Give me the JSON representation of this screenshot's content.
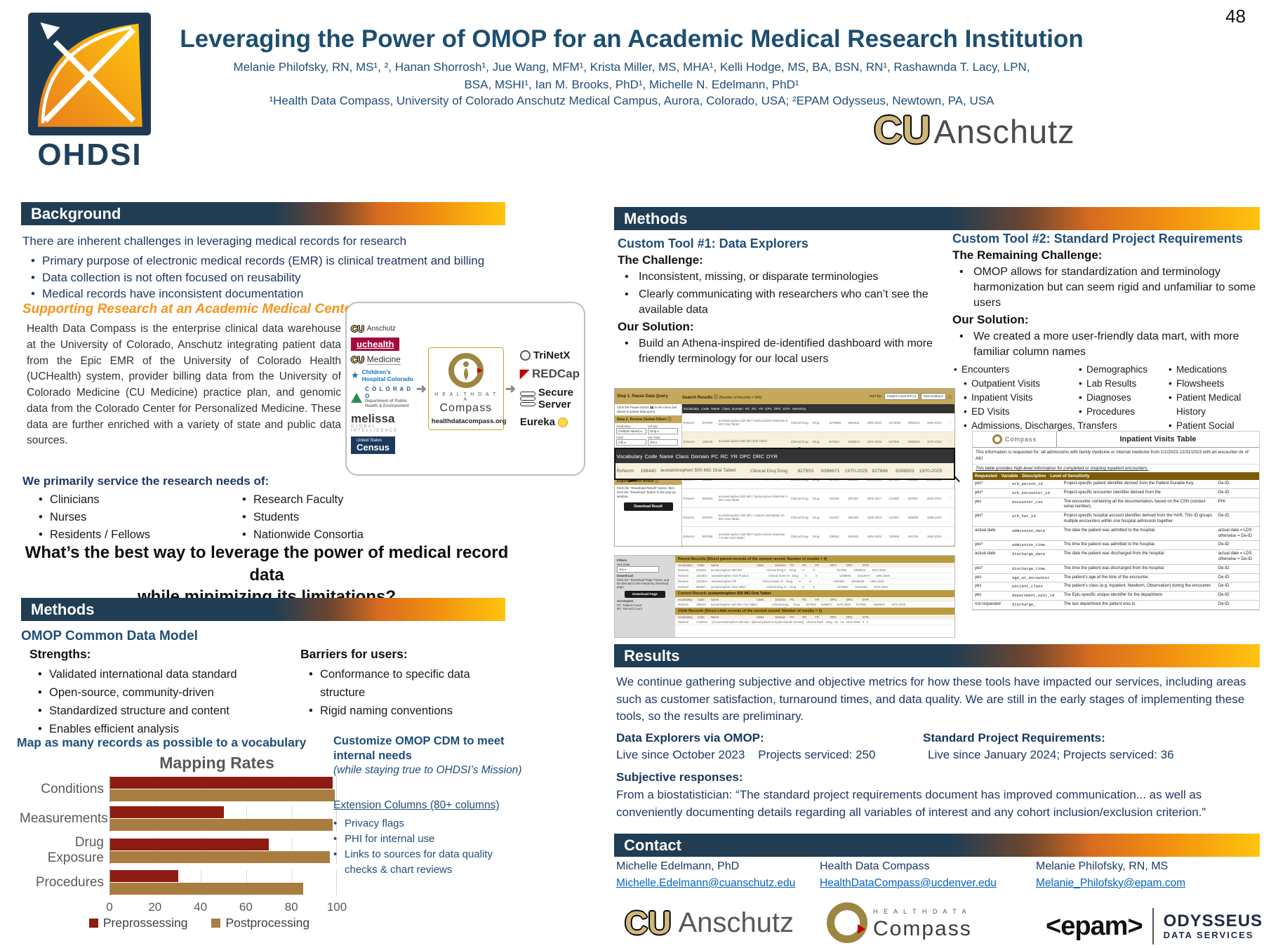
{
  "page": {
    "number": "48"
  },
  "header": {
    "title": "Leveraging the Power of OMOP for an Academic Medical Research Institution",
    "authors_line1": "Melanie Philofsky, RN, MS¹, ², Hanan Shorrosh¹, Jue Wang, MFM¹, Krista Miller, MS, MHA¹, Kelli Hodge, MS, BA, BSN, RN¹, Rashawnda T. Lacy, LPN,",
    "authors_line2": "BSA, MSHI¹, Ian M. Brooks, PhD¹, Michelle N. Edelmann, PhD¹",
    "affiliation": "¹Health Data Compass, University of Colorado Anschutz Medical Campus, Aurora, Colorado, USA; ²EPAM Odysseus, Newtown, PA, USA",
    "ohdsi_logo_text": "OHDSI",
    "cu_monogram": "CU",
    "anschutz_logo_text": "Anschutz"
  },
  "background": {
    "heading": "Background",
    "intro": "There are inherent challenges in leveraging medical records for research",
    "bullets": [
      "Primary purpose of electronic medical records (EMR) is clinical treatment and billing",
      "Data collection is not often focused on reusability",
      "Medical records have inconsistent documentation"
    ],
    "subheading": "Supporting Research at an Academic Medical Center",
    "paragraph": "Health Data Compass is the enterprise clinical data warehouse at the University of Colorado, Anschutz integrating patient data from the Epic EMR of the University of Colorado Health (UCHealth) system, provider billing data from the University of Colorado Medicine (CU Medicine) practice plan, and genomic data from the Colorado Center for Personalized Medicine. These data are further enriched with a variety of state and public data sources.",
    "service_heading": "We primarily service the research needs of:",
    "service_col1": [
      "Clinicians",
      "Nurses",
      "Residents / Fellows"
    ],
    "service_col2": [
      "Research Faculty",
      "Students",
      "Nationwide Consortia"
    ],
    "question_line1": "What’s the best way to leverage the power of medical record data",
    "question_line2": "while minimizing its limitations?",
    "diagram": {
      "source_anschutz": "Anschutz",
      "source_uchealth": "uchealth",
      "source_medicine": "Medicine",
      "source_childrens": "Children’s Hospital Colorado",
      "source_colorado": "C O L O R A D O",
      "source_colorado_sub": "Department of Public Health & Environment",
      "source_melissa": "melissa",
      "source_melissa_sub": "GLOBAL INTELLIGENCE",
      "source_census": "Census",
      "source_census_sub": "United States",
      "center_line1": "H E A L T H   D A T A",
      "center_line2": "Compass",
      "center_url": "healthdatacompass.org",
      "out_trinetx": "TriNetX",
      "out_redcap_red": "RED",
      "out_redcap_cap": "Cap",
      "out_secure": "Secure",
      "out_server": "Server",
      "out_eureka": "Eureka"
    }
  },
  "methods_left": {
    "heading": "Methods",
    "cdm_heading": "OMOP Common Data Model",
    "strengths_label": "Strengths:",
    "strengths": [
      "Validated international data standard",
      "Open-source, community-driven",
      "Standardized structure and content",
      "Enables efficient analysis"
    ],
    "barriers_label": "Barriers for users:",
    "barriers": [
      "Conformance to specific data structure",
      "Rigid naming conventions"
    ],
    "map_heading": "Map as many records as possible to a vocabulary",
    "customize_heading": "Customize OMOP CDM to meet internal needs",
    "customize_note": "(while staying true to OHDSI’s Mission)",
    "extension_heading": "Extension Columns (80+ columns)",
    "extension_bullets": [
      "Privacy flags",
      "PHI for internal use",
      "Links to sources for data quality checks & chart reviews"
    ]
  },
  "chart_data": {
    "type": "bar",
    "orientation": "horizontal",
    "title": "Mapping Rates",
    "categories": [
      "Conditions",
      "Measurements",
      "Drug Exposure",
      "Procedures"
    ],
    "series": [
      {
        "name": "Preprossessing",
        "values": [
          98,
          50,
          70,
          30
        ]
      },
      {
        "name": "Postprocessing",
        "values": [
          99,
          98,
          97,
          85
        ]
      }
    ],
    "colors": [
      "#8E1C12",
      "#A87D3F"
    ],
    "xlim": [
      0,
      100
    ],
    "xticks": [
      0,
      20,
      40,
      60,
      80,
      100
    ],
    "grid": true,
    "legend_position": "bottom"
  },
  "methods_right": {
    "heading": "Methods",
    "tool1": {
      "heading": "Custom Tool #1: Data Explorers",
      "challenge_label": "The Challenge:",
      "challenge_bullets": [
        "Inconsistent, missing, or disparate terminologies",
        "Clearly communicating with researchers who can’t see the available data"
      ],
      "solution_label": "Our Solution:",
      "solution_bullets": [
        "Build an Athena-inspired de-identified dashboard with more friendly terminology for our local users"
      ]
    },
    "tool2": {
      "heading": "Custom Tool #2: Standard Project Requirements",
      "challenge_label": "The Remaining Challenge:",
      "challenge_bullets": [
        "OMOP allows for standardization and terminology harmonization but can seem rigid and unfamiliar to some users"
      ],
      "solution_label": "Our Solution:",
      "solution_bullets": [
        "We created a more user-friendly data mart, with more familiar column names"
      ],
      "col1_top": [
        "Encounters"
      ],
      "col1_sub": [
        "Outpatient Visits",
        "Inpatient Visits",
        "ED Visits",
        "Admissions, Discharges, Transfers"
      ],
      "col2": [
        "Demographics",
        "Lab Results",
        "Diagnoses",
        "Procedures"
      ],
      "col3": [
        "Medications",
        "Flowsheets",
        "Patient Medical History",
        "Patient Social History"
      ]
    },
    "dashboard": {
      "step1": "Step 1. Pause Data Query",
      "step1_note": "Click the Pause button ▮▮ in the menu bar above to pause data query.",
      "step2": "Step 2. Review Global Filters ⓘ",
      "filters": [
        [
          "Vocabulary",
          "(multiple values) ▾"
        ],
        [
          "Domain",
          "Drug ▾"
        ],
        [
          "Class",
          "(All) ▾"
        ],
        [
          "Has Data",
          "Yes ▾"
        ],
        [
          "Concept",
          "(multiple values) ▾"
        ],
        [
          "Location",
          "OHDSI Concept ▾"
        ]
      ],
      "step4": "Step 4. Apply Filters",
      "step4_note": "Click the Resume button ▶ to apply the updates made to the filters.",
      "export_label": "Export Search Result ⓘ",
      "export_note": "Click the \"Download Result\" button, then click the \"Download\" button in the pop-up window.",
      "download_result": "Download Result",
      "search_results": "Search Results ⓘ",
      "records_note": "(Number of Records = 905)",
      "sort_by": "sort by:",
      "sort_field": "Patient Count (PC) ▾",
      "sort_dir": "Descending ▾",
      "home_icon": "⌂",
      "hierarchy_icon": "∴",
      "columns": [
        "Vocabulary",
        "Code",
        "Name",
        "Class",
        "Domain",
        "PC",
        "RC",
        "YR",
        "DPC",
        "DRC",
        "DYR",
        "Hierarchy"
      ],
      "rows": [
        [
          "RxNorm",
          "857002",
          "acetaminophen 325 MG / hydrocodone bitartrate 5 MG Oral Tablet",
          "Clinical Drug",
          "Drug",
          "1075886",
          "4852511",
          "1994-2024",
          "1076054",
          "4853213",
          "1994-2024"
        ],
        [
          "RxNorm",
          "198440",
          "acetaminophen 500 MG Oral Tablet",
          "Clinical Drug",
          "Drug",
          "827503",
          "6396671",
          "1970-2025",
          "827866",
          "6398503",
          "1970-2025"
        ],
        [
          "RxNorm",
          "1049221",
          "acetaminophen 325 MG / oxycodone hydrochloride 5 MG Oral Tablet",
          "Clinical Drug",
          "Drug",
          "812629",
          "3802048",
          "1985-2024",
          "813317",
          "3802341",
          "1985-2024"
        ],
        [
          "RxNorm",
          "198443",
          "acetaminophen 650 MG Rectal Suppository",
          "Clinical Drug",
          "Drug",
          "167504",
          "292200",
          "2006-2024",
          "167560",
          "292336",
          "2006-2024"
        ],
        [
          "RxNorm",
          "856903",
          "acetaminophen 500 MG / hydrocodone bitartrate 5 MG Oral Tablet",
          "Clinical Drug",
          "Drug",
          "124038",
          "387291",
          "2002-2017",
          "124098",
          "387597",
          "2002-2017"
        ],
        [
          "RxNorm",
          "993781",
          "acetaminophen 300 MG / codeine phosphate 30 MG Oral Tablet",
          "Clinical Drug",
          "Drug",
          "122327",
          "308468",
          "1985-2024",
          "122397",
          "308699",
          "1985-2024"
        ],
        [
          "RxNorm",
          "857005",
          "acetaminophen 325 MG / hydrocodone bitartrate 7.5 MG Oral Tablet",
          "Clinical Drug",
          "Drug",
          "106552",
          "462045",
          "1994-2024",
          "106565",
          "462136",
          "1994-2024"
        ]
      ],
      "zoom_columns": [
        "Vocabulary",
        "Code",
        "Name",
        "Class",
        "Domain",
        "PC",
        "RC",
        "YR",
        "DPC",
        "DRC",
        "DYR"
      ],
      "zoom_row": [
        "RxNorm",
        "198440",
        "acetaminophen 500 MG Oral Tablet",
        "Clinical Drug",
        "Drug",
        "827503",
        "6396671",
        "1970-2025",
        "827866",
        "6398503",
        "1970-2025"
      ],
      "side2_filters": "Filters",
      "side2_hasdata": "Has Data",
      "side2_hasdata_val": "Yes ▾",
      "side2_download": "Download",
      "side2_note": "Click the \"Download Page\" button and be directed to the hierarchy download page.",
      "download_page": "Download Page",
      "side2_acronyms": "Acronyms",
      "acronym1": "PC: Patient Count",
      "acronym2": "RC: Record Count",
      "parent_header": "Parent Records (Direct parent records of the current record. Number of results = 4)",
      "mini_columns": "Vocabulary      Code        Name                                              Class              Domain      PC          RC          YR              DPC            DRC            DYR",
      "parent_rows": [
        "RxNorm         315266      acetaminophen 500 MG                              Clinical Drug C    Drug        0           0                           827866         6398503        1970-2025",
        "RxNorm         1152842     acetaminophen Oral Product                        Clinical Dose Gr   Drug        0           0                           1298806        11018747       1961-2025",
        "RxNorm         1152843     acetaminophen Pill                                Clinical Dose Gr   Drug        0           0                           1282983        10448639       1961-2025",
        "RxNorm         369097      acetaminophen Oral Tablet                         Clinical Drug Fo   Drug        0           0                           1075862        10193861       1970-2025"
      ],
      "current_prefix": "Current Record:",
      "current_name": "acetaminophen 500 MG Oral Tablet",
      "current_rows": [
        "RxNorm         198440      acetaminophen 500 MG Oral Tablet                  Clinical Drug      Drug        827503      6396671     1970-2025       827866         6398503        1970-2025"
      ],
      "child_header": "Child Records (Direct child records of the current record. Number of results = 1)",
      "child_rows": [
        "RxNorm         1792041     {24 (acetaminophen 500 MG / diphenhydramine hydrochloride 25 MG)}   Clinical Pack   Drug   18   18   2012-2025   0   0"
      ]
    },
    "inpatient_table": {
      "logo_text": "Compass",
      "title": "Inpatient Visits Table",
      "request_note": "This information is requested for: all admissions with family medicine or internal medicine from 1/1/2023-12/31/2023 with an encounter dx of AKI",
      "table_note": "This table provides high-level information for completed or ongoing inpatient encounters.",
      "columns": [
        "Requested",
        "Variable",
        "Description",
        "Level of Sensitivity"
      ],
      "rows": [
        [
          "yes*",
          "arb_person_id",
          "Project-specific patient identifier derived from the Patient Durable Key.",
          "De-ID"
        ],
        [
          "yes*",
          "arb_encounter_id",
          "Project-specific encounter identifier derived from the",
          "De-ID"
        ],
        [
          "yes",
          "encounter_csn",
          "The encounter containing all the documentation, based on the CSN (contact serial number).",
          "PHI"
        ],
        [
          "yes*",
          "arb_har_id",
          "Project-specific hospital account identifier derived from the HAR. This ID groups multiple encounters within one hospital admission together.",
          "De-ID"
        ],
        [
          "actual date",
          "admission_date",
          "The date the patient was admitted to the hospital.",
          "actual date = LDS otherwise = De-ID"
        ],
        [
          "yes*",
          "admission_time",
          "The time the patient was admitted to the hospital.",
          "De-ID"
        ],
        [
          "actual date",
          "discharge_date",
          "The date the patient was discharged from the hospital.",
          "actual date = LDS otherwise = De-ID"
        ],
        [
          "yes*",
          "discharge_time",
          "The time the patient was discharged from the hospital.",
          "De-ID"
        ],
        [
          "yes",
          "age_at_encounter",
          "The patient’s age at the time of the encounter.",
          "De-ID"
        ],
        [
          "yes",
          "patient_class",
          "The patient’s class (e.g. Inpatient, Newborn, Observation) during the encounter.",
          "De-ID"
        ],
        [
          "yes",
          "department_epic_id",
          "The Epic-specific unique identifier for the department.",
          "De-ID"
        ],
        [
          "not requested",
          "discharge_",
          "The last department the patient was in.",
          "De-ID"
        ]
      ]
    }
  },
  "results": {
    "heading": "Results",
    "paragraph": "We continue gathering subjective and objective metrics for how these tools have impacted our services, including areas such as customer satisfaction, turnaround times, and data quality. We are still in the early stages of implementing these tools, so the results are preliminary.",
    "col1_heading": "Data Explorers via OMOP:",
    "col1_line": "Live since October 2023    Projects serviced: 250",
    "col2_heading": "Standard Project Requirements:",
    "col2_line": "Live since January 2024; Projects serviced: 36",
    "subjective_heading": "Subjective responses:",
    "subjective_text": "From  a biostatistician: “The standard project requirements document has improved communication... as well as conveniently documenting details regarding all variables of interest and any cohort inclusion/exclusion criterion.”"
  },
  "contact": {
    "heading": "Contact",
    "entries": [
      {
        "name": "Michelle Edelmann, PhD",
        "email": "Michelle.Edelmann@cuanschutz.edu"
      },
      {
        "name": "Health Data Compass",
        "email": "HealthDataCompass@ucdenver.edu"
      },
      {
        "name": "Melanie Philofsky, RN, MS",
        "email": "Melanie_Philofsky@epam.com"
      }
    ]
  },
  "footer_logos": {
    "cu_monogram": "CU",
    "anschutz": "Anschutz",
    "compass_line1": "H E A L T H   D A T A",
    "compass_line2": "Compass",
    "epam": "<epam>",
    "odysseus": "ODYSSEUS",
    "data_services": "DATA SERVICES"
  }
}
